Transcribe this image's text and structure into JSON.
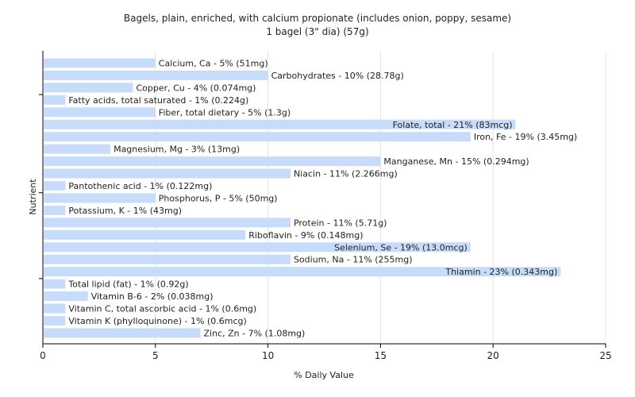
{
  "chart_data": {
    "type": "bar",
    "orientation": "horizontal",
    "title": "Bagels, plain, enriched, with calcium propionate (includes onion, poppy, sesame)",
    "subtitle": "1 bagel (3\" dia) (57g)",
    "xlabel": "% Daily Value",
    "ylabel": "Nutrient",
    "xlim": [
      0,
      25
    ],
    "xticks": [
      0,
      5,
      10,
      15,
      20,
      25
    ],
    "grid": true,
    "bar_color": "#c6dcfa",
    "categories": [
      "Calcium, Ca",
      "Carbohydrates",
      "Copper, Cu",
      "Fatty acids, total saturated",
      "Fiber, total dietary",
      "Folate, total",
      "Iron, Fe",
      "Magnesium, Mg",
      "Manganese, Mn",
      "Niacin",
      "Pantothenic acid",
      "Phosphorus, P",
      "Potassium, K",
      "Protein",
      "Riboflavin",
      "Selenium, Se",
      "Sodium, Na",
      "Thiamin",
      "Total lipid (fat)",
      "Vitamin B-6",
      "Vitamin C, total ascorbic acid",
      "Vitamin K (phylloquinone)",
      "Zinc, Zn"
    ],
    "values": [
      5,
      10,
      4,
      1,
      5,
      21,
      19,
      3,
      15,
      11,
      1,
      5,
      1,
      11,
      9,
      19,
      11,
      23,
      1,
      2,
      1,
      1,
      7
    ],
    "labels": [
      "Calcium, Ca - 5% (51mg)",
      "Carbohydrates - 10% (28.78g)",
      "Copper, Cu - 4% (0.074mg)",
      "Fatty acids, total saturated - 1% (0.224g)",
      "Fiber, total dietary - 5% (1.3g)",
      "Folate, total - 21% (83mcg)",
      "Iron, Fe - 19% (3.45mg)",
      "Magnesium, Mg - 3% (13mg)",
      "Manganese, Mn - 15% (0.294mg)",
      "Niacin - 11% (2.266mg)",
      "Pantothenic acid - 1% (0.122mg)",
      "Phosphorus, P - 5% (50mg)",
      "Potassium, K - 1% (43mg)",
      "Protein - 11% (5.71g)",
      "Riboflavin - 9% (0.148mg)",
      "Selenium, Se - 19% (13.0mcg)",
      "Sodium, Na - 11% (255mg)",
      "Thiamin - 23% (0.343mg)",
      "Total lipid (fat) - 1% (0.92g)",
      "Vitamin B-6 - 2% (0.038mg)",
      "Vitamin C, total ascorbic acid - 1% (0.6mg)",
      "Vitamin K (phylloquinone) - 1% (0.6mcg)",
      "Zinc, Zn - 7% (1.08mg)"
    ]
  }
}
